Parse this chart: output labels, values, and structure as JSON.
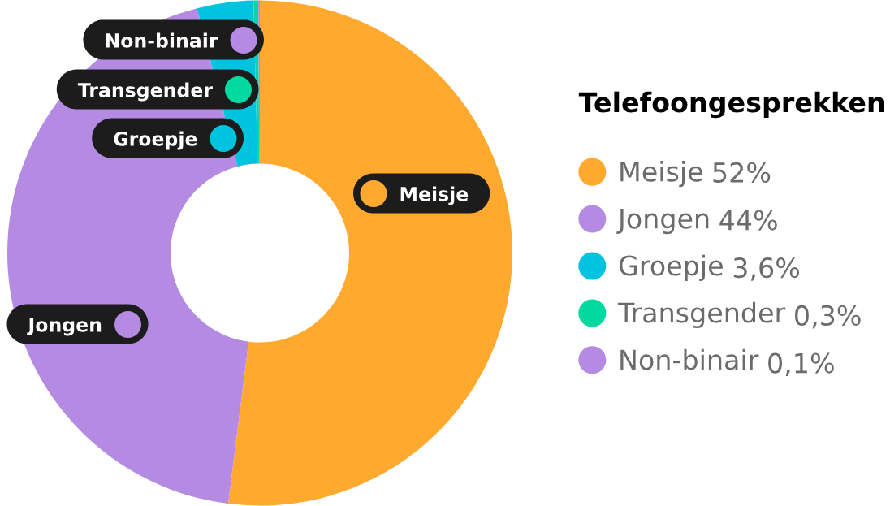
{
  "chart_data": {
    "type": "donut",
    "categories": [
      "Meisje",
      "Jongen",
      "Groepje",
      "Transgender",
      "Non-binair"
    ],
    "values": [
      52,
      44,
      3.6,
      0.3,
      0.1
    ],
    "colors": [
      "#ffa92e",
      "#b48ae2",
      "#00c3df",
      "#00d9a0",
      "#b48ae2"
    ],
    "value_labels": [
      "52%",
      "44%",
      "3,6%",
      "0,3%",
      "0,1%"
    ],
    "legend_title": "Telefoongesprekken",
    "legend": "right"
  }
}
